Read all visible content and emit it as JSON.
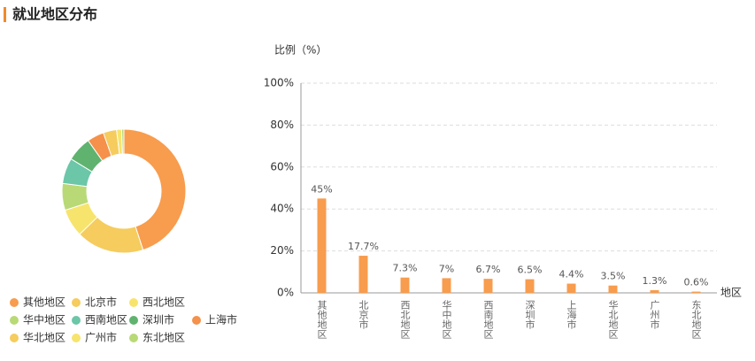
{
  "header": {
    "title": "就业地区分布"
  },
  "chart_data": [
    {
      "type": "pie",
      "categories": [
        "其他地区",
        "北京市",
        "西北地区",
        "华中地区",
        "西南地区",
        "深圳市",
        "上海市",
        "华北地区",
        "广州市",
        "东北地区"
      ],
      "values": [
        45,
        17.7,
        7.3,
        7,
        6.7,
        6.5,
        4.4,
        3.5,
        1.3,
        0.6
      ],
      "colors": [
        "#f89c4d",
        "#f5cc5d",
        "#f7e46c",
        "#b9d976",
        "#6cc6a8",
        "#5fb36f",
        "#f5914a",
        "#f5cc5d",
        "#f7e46c",
        "#b9d976"
      ],
      "legend": "bottom"
    },
    {
      "type": "bar",
      "y_label": "比例（%）",
      "x_label": "地区",
      "categories": [
        "其他地区",
        "北京市",
        "西北地区",
        "华中地区",
        "西南地区",
        "深圳市",
        "上海市",
        "华北地区",
        "广州市",
        "东北地区"
      ],
      "values": [
        45,
        17.7,
        7.3,
        7,
        6.7,
        6.5,
        4.4,
        3.5,
        1.3,
        0.6
      ],
      "value_labels": [
        "45%",
        "17.7%",
        "7.3%",
        "7%",
        "6.7%",
        "6.5%",
        "4.4%",
        "3.5%",
        "1.3%",
        "0.6%"
      ],
      "color": "#f89c4d",
      "ylim": [
        0,
        100
      ],
      "yticks": [
        {
          "value": 0,
          "label": "0%"
        },
        {
          "value": 20,
          "label": "20%"
        },
        {
          "value": 40,
          "label": "40%"
        },
        {
          "value": 60,
          "label": "60%"
        },
        {
          "value": 80,
          "label": "80%"
        },
        {
          "value": 100,
          "label": "100%"
        }
      ],
      "grid": true
    }
  ]
}
